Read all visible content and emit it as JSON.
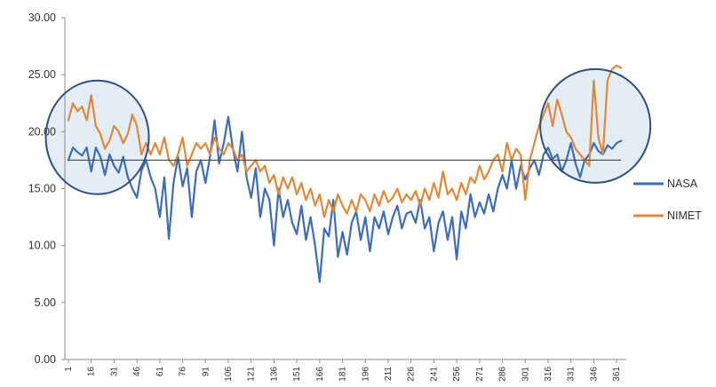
{
  "chart_data": {
    "type": "line",
    "title": "",
    "xlabel": "",
    "ylabel": "",
    "ylim": [
      0,
      30
    ],
    "xlim": [
      1,
      365
    ],
    "grid": false,
    "legend_position": "right",
    "y_ticks": [
      "0.00",
      "5.00",
      "10.00",
      "15.00",
      "20.00",
      "25.00",
      "30.00"
    ],
    "x_ticks": [
      "1",
      "16",
      "31",
      "46",
      "61",
      "76",
      "91",
      "106",
      "121",
      "136",
      "151",
      "166",
      "181",
      "196",
      "211",
      "226",
      "241",
      "256",
      "271",
      "286",
      "301",
      "316",
      "331",
      "346",
      "361"
    ],
    "reference_line": {
      "y": 17.5,
      "color": "#4a4a4a"
    },
    "highlight_circles": [
      {
        "center_day": 20,
        "center_y": 19.5,
        "color": "#2f4f7f",
        "fill": "#dbe6f1"
      },
      {
        "center_day": 347,
        "center_y": 20.5,
        "color": "#2f4f7f",
        "fill": "#dbe6f1"
      }
    ],
    "colors": {
      "NASA": "#3d6db5",
      "NIMET": "#e0883a"
    },
    "series": [
      {
        "name": "NASA",
        "color": "#3d6db5",
        "points": [
          [
            1,
            17.5
          ],
          [
            4,
            18.6
          ],
          [
            7,
            18.2
          ],
          [
            10,
            17.9
          ],
          [
            13,
            18.6
          ],
          [
            16,
            16.5
          ],
          [
            19,
            18.6
          ],
          [
            22,
            17.8
          ],
          [
            25,
            16.2
          ],
          [
            28,
            18.0
          ],
          [
            31,
            17.0
          ],
          [
            34,
            16.4
          ],
          [
            37,
            17.8
          ],
          [
            40,
            16.0
          ],
          [
            43,
            15.0
          ],
          [
            46,
            14.2
          ],
          [
            49,
            16.6
          ],
          [
            52,
            17.5
          ],
          [
            55,
            16.0
          ],
          [
            58,
            15.0
          ],
          [
            61,
            12.5
          ],
          [
            64,
            16.0
          ],
          [
            67,
            10.6
          ],
          [
            70,
            15.5
          ],
          [
            73,
            17.8
          ],
          [
            76,
            15.2
          ],
          [
            79,
            16.8
          ],
          [
            82,
            12.5
          ],
          [
            85,
            16.5
          ],
          [
            88,
            17.5
          ],
          [
            91,
            15.5
          ],
          [
            94,
            17.8
          ],
          [
            97,
            21.0
          ],
          [
            100,
            17.2
          ],
          [
            103,
            19.0
          ],
          [
            106,
            21.3
          ],
          [
            109,
            18.5
          ],
          [
            112,
            16.5
          ],
          [
            115,
            20.0
          ],
          [
            118,
            16.0
          ],
          [
            121,
            14.2
          ],
          [
            124,
            16.8
          ],
          [
            127,
            12.5
          ],
          [
            130,
            15.0
          ],
          [
            133,
            14.0
          ],
          [
            136,
            10.0
          ],
          [
            139,
            15.0
          ],
          [
            142,
            12.5
          ],
          [
            145,
            14.0
          ],
          [
            148,
            12.0
          ],
          [
            151,
            11.0
          ],
          [
            154,
            13.5
          ],
          [
            157,
            10.5
          ],
          [
            160,
            12.5
          ],
          [
            163,
            10.0
          ],
          [
            166,
            6.8
          ],
          [
            169,
            11.5
          ],
          [
            172,
            10.8
          ],
          [
            175,
            14.0
          ],
          [
            178,
            9.0
          ],
          [
            181,
            11.2
          ],
          [
            184,
            9.2
          ],
          [
            187,
            12.0
          ],
          [
            190,
            13.0
          ],
          [
            193,
            10.5
          ],
          [
            196,
            12.5
          ],
          [
            199,
            9.5
          ],
          [
            202,
            12.5
          ],
          [
            205,
            11.5
          ],
          [
            208,
            13.0
          ],
          [
            211,
            11.0
          ],
          [
            214,
            12.5
          ],
          [
            217,
            13.5
          ],
          [
            220,
            11.5
          ],
          [
            223,
            12.8
          ],
          [
            226,
            13.0
          ],
          [
            229,
            12.0
          ],
          [
            232,
            14.0
          ],
          [
            235,
            11.5
          ],
          [
            238,
            12.5
          ],
          [
            241,
            9.5
          ],
          [
            244,
            12.0
          ],
          [
            247,
            13.0
          ],
          [
            250,
            10.5
          ],
          [
            253,
            12.5
          ],
          [
            256,
            8.8
          ],
          [
            259,
            13.0
          ],
          [
            262,
            11.5
          ],
          [
            265,
            14.5
          ],
          [
            268,
            12.5
          ],
          [
            271,
            13.8
          ],
          [
            274,
            12.8
          ],
          [
            277,
            14.5
          ],
          [
            280,
            13.0
          ],
          [
            283,
            15.0
          ],
          [
            286,
            16.2
          ],
          [
            289,
            15.0
          ],
          [
            292,
            17.5
          ],
          [
            295,
            15.0
          ],
          [
            298,
            17.0
          ],
          [
            301,
            15.8
          ],
          [
            304,
            16.8
          ],
          [
            307,
            17.5
          ],
          [
            310,
            16.2
          ],
          [
            313,
            18.0
          ],
          [
            316,
            18.6
          ],
          [
            319,
            17.6
          ],
          [
            322,
            18.0
          ],
          [
            325,
            16.5
          ],
          [
            328,
            17.5
          ],
          [
            331,
            19.0
          ],
          [
            334,
            17.2
          ],
          [
            337,
            16.0
          ],
          [
            340,
            17.5
          ],
          [
            343,
            18.0
          ],
          [
            346,
            19.0
          ],
          [
            349,
            18.3
          ],
          [
            352,
            18.0
          ],
          [
            355,
            18.8
          ],
          [
            358,
            18.5
          ],
          [
            361,
            19.0
          ],
          [
            364,
            19.2
          ]
        ]
      },
      {
        "name": "NIMET",
        "color": "#e0883a",
        "points": [
          [
            1,
            21.0
          ],
          [
            4,
            22.5
          ],
          [
            7,
            21.8
          ],
          [
            10,
            22.2
          ],
          [
            13,
            21.0
          ],
          [
            16,
            23.2
          ],
          [
            19,
            20.5
          ],
          [
            22,
            19.8
          ],
          [
            25,
            18.5
          ],
          [
            28,
            19.2
          ],
          [
            31,
            20.5
          ],
          [
            34,
            20.0
          ],
          [
            37,
            19.0
          ],
          [
            40,
            19.8
          ],
          [
            43,
            21.5
          ],
          [
            46,
            20.5
          ],
          [
            49,
            18.0
          ],
          [
            52,
            19.0
          ],
          [
            55,
            18.0
          ],
          [
            58,
            19.0
          ],
          [
            61,
            18.0
          ],
          [
            64,
            19.5
          ],
          [
            67,
            17.5
          ],
          [
            70,
            17.0
          ],
          [
            73,
            18.0
          ],
          [
            76,
            19.5
          ],
          [
            79,
            17.0
          ],
          [
            82,
            18.0
          ],
          [
            85,
            19.0
          ],
          [
            88,
            18.5
          ],
          [
            91,
            19.0
          ],
          [
            94,
            18.0
          ],
          [
            97,
            19.5
          ],
          [
            100,
            18.5
          ],
          [
            103,
            18.0
          ],
          [
            106,
            19.0
          ],
          [
            109,
            18.5
          ],
          [
            112,
            17.5
          ],
          [
            115,
            18.0
          ],
          [
            118,
            16.5
          ],
          [
            121,
            17.0
          ],
          [
            124,
            17.5
          ],
          [
            127,
            16.5
          ],
          [
            130,
            17.0
          ],
          [
            133,
            15.5
          ],
          [
            136,
            16.2
          ],
          [
            139,
            14.5
          ],
          [
            142,
            16.0
          ],
          [
            145,
            15.0
          ],
          [
            148,
            16.0
          ],
          [
            151,
            14.5
          ],
          [
            154,
            15.5
          ],
          [
            157,
            14.0
          ],
          [
            160,
            15.0
          ],
          [
            163,
            13.5
          ],
          [
            166,
            14.5
          ],
          [
            169,
            12.5
          ],
          [
            172,
            14.0
          ],
          [
            175,
            13.0
          ],
          [
            178,
            14.5
          ],
          [
            181,
            13.5
          ],
          [
            184,
            12.8
          ],
          [
            187,
            14.0
          ],
          [
            190,
            13.0
          ],
          [
            193,
            14.5
          ],
          [
            196,
            14.0
          ],
          [
            199,
            13.0
          ],
          [
            202,
            14.5
          ],
          [
            205,
            13.5
          ],
          [
            208,
            14.8
          ],
          [
            211,
            13.8
          ],
          [
            214,
            14.2
          ],
          [
            217,
            15.0
          ],
          [
            220,
            13.8
          ],
          [
            223,
            14.5
          ],
          [
            226,
            14.0
          ],
          [
            229,
            14.8
          ],
          [
            232,
            13.5
          ],
          [
            235,
            15.0
          ],
          [
            238,
            14.0
          ],
          [
            241,
            15.5
          ],
          [
            244,
            14.2
          ],
          [
            247,
            16.5
          ],
          [
            250,
            14.5
          ],
          [
            253,
            15.0
          ],
          [
            256,
            14.0
          ],
          [
            259,
            15.5
          ],
          [
            262,
            14.5
          ],
          [
            265,
            16.0
          ],
          [
            268,
            15.5
          ],
          [
            271,
            17.0
          ],
          [
            274,
            15.8
          ],
          [
            277,
            16.5
          ],
          [
            280,
            17.5
          ],
          [
            283,
            18.0
          ],
          [
            286,
            16.5
          ],
          [
            289,
            19.0
          ],
          [
            292,
            17.5
          ],
          [
            295,
            18.5
          ],
          [
            298,
            18.0
          ],
          [
            301,
            14.0
          ],
          [
            304,
            17.5
          ],
          [
            307,
            19.0
          ],
          [
            310,
            20.5
          ],
          [
            313,
            21.5
          ],
          [
            316,
            22.5
          ],
          [
            319,
            20.5
          ],
          [
            322,
            22.8
          ],
          [
            325,
            21.5
          ],
          [
            328,
            20.0
          ],
          [
            331,
            19.5
          ],
          [
            334,
            18.5
          ],
          [
            337,
            18.0
          ],
          [
            340,
            17.5
          ],
          [
            343,
            17.0
          ],
          [
            346,
            24.5
          ],
          [
            349,
            19.5
          ],
          [
            352,
            18.0
          ],
          [
            355,
            24.5
          ],
          [
            358,
            25.5
          ],
          [
            361,
            25.8
          ],
          [
            364,
            25.6
          ]
        ]
      }
    ]
  }
}
